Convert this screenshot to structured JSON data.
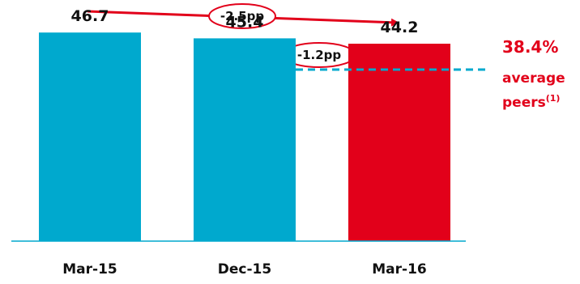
{
  "chart_data": {
    "type": "bar",
    "categories": [
      "Mar-15",
      "Dec-15",
      "Mar-16"
    ],
    "values": [
      46.7,
      45.4,
      44.2
    ],
    "value_labels": [
      "46.7",
      "45.4",
      "44.2"
    ],
    "bar_colors": [
      "#00a9ce",
      "#00a9ce",
      "#e2001a"
    ],
    "ylim": [
      0,
      50
    ],
    "reference_line": {
      "value": 38.4,
      "label_value": "38.4%",
      "label_line1": "average",
      "label_line2": "peers",
      "label_superscript": "(1)",
      "color": "#00a9ce",
      "style": "dashed"
    },
    "annotations": [
      {
        "text": "-2.5pp",
        "from": "Mar-15",
        "to": "Mar-16"
      },
      {
        "text": "-1.2pp",
        "from": "Dec-15",
        "to": "Mar-16"
      }
    ],
    "accent_color": "#e2001a",
    "axis_color": "#00a9ce",
    "grid": false,
    "legend": "none"
  }
}
